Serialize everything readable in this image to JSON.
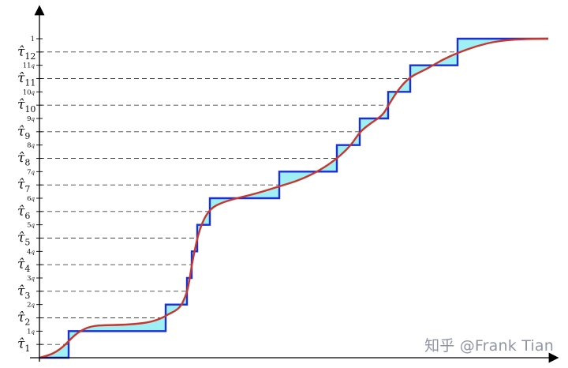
{
  "figure": {
    "tau_labels": [
      {
        "base": "τ̂",
        "sub": "1"
      },
      {
        "base": "τ̂",
        "sub": "2"
      },
      {
        "base": "τ̂",
        "sub": "3"
      },
      {
        "base": "τ̂",
        "sub": "4"
      },
      {
        "base": "τ̂",
        "sub": "5"
      },
      {
        "base": "τ̂",
        "sub": "6"
      },
      {
        "base": "τ̂",
        "sub": "7"
      },
      {
        "base": "τ̂",
        "sub": "8"
      },
      {
        "base": "τ̂",
        "sub": "9"
      },
      {
        "base": "τ̂",
        "sub": "10"
      },
      {
        "base": "τ̂",
        "sub": "11"
      },
      {
        "base": "τ̂",
        "sub": "12"
      }
    ],
    "q_labels": [
      {
        "base": "1",
        "sub": "q"
      },
      {
        "base": "2",
        "sub": "q"
      },
      {
        "base": "3",
        "sub": "q"
      },
      {
        "base": "4",
        "sub": "q"
      },
      {
        "base": "5",
        "sub": "q"
      },
      {
        "base": "6",
        "sub": "q"
      },
      {
        "base": "7",
        "sub": "q"
      },
      {
        "base": "8",
        "sub": "q"
      },
      {
        "base": "9",
        "sub": "q"
      },
      {
        "base": "10",
        "sub": "q"
      },
      {
        "base": "11",
        "sub": "q"
      }
    ],
    "top_tick_label": "1",
    "colors": {
      "step": "#1a2fd6",
      "fill": "#9ff0f4",
      "curve": "#c8372d",
      "grid": "#444444",
      "axis": "#000000"
    }
  },
  "watermark": "知乎 @Frank Tian"
}
